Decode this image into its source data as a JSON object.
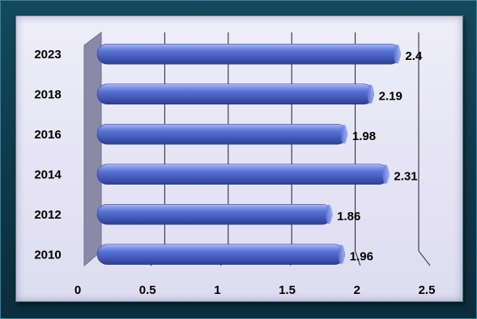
{
  "chart_data": {
    "type": "bar",
    "orientation": "horizontal",
    "categories": [
      "2023",
      "2018",
      "2016",
      "2014",
      "2012",
      "2010"
    ],
    "values": [
      2.4,
      2.19,
      1.98,
      2.31,
      1.86,
      1.96
    ],
    "data_labels": [
      "2.4",
      "2.19",
      "1.98",
      "2.31",
      "1.86",
      "1.96"
    ],
    "x_ticks": [
      "0",
      "0.5",
      "1",
      "1.5",
      "2",
      "2.5"
    ],
    "xlim": [
      0,
      2.5
    ],
    "grid": true,
    "legend": "none",
    "title": "",
    "xlabel": "",
    "ylabel": "",
    "colors": {
      "bar_light": "#aab8f2",
      "bar_mid": "#5a73d4",
      "bar_dark": "#2b3f99",
      "background": "#0b2d3c",
      "plot_bg": "#e6e4f5",
      "side_wall": "#8a8aa8"
    }
  }
}
